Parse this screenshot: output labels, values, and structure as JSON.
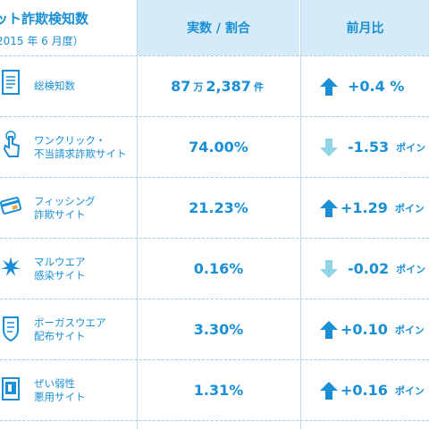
{
  "header": {
    "title": "ット詐欺検知数",
    "subtitle": "2015 年 6 月度）",
    "col_value": "実数 / 割合",
    "col_compare": "前月比"
  },
  "rows": [
    {
      "label1": "総検知数",
      "label2": "",
      "value": "87",
      "value_unit1": "万",
      "value_rest": "2,387",
      "value_unit2": "件",
      "change": "+0.4 %",
      "change_unit": "",
      "direction": "up",
      "icon": "document-icon"
    },
    {
      "label1": "ワンクリック・",
      "label2": "不当請求詐欺サイト",
      "value": "74.00%",
      "change": "-1.53",
      "change_unit": "ポイン",
      "direction": "down",
      "icon": "hand-click-icon"
    },
    {
      "label1": "フィッシング",
      "label2": "詐欺サイト",
      "value": "21.23%",
      "change": "+1.29",
      "change_unit": "ポイン",
      "direction": "up",
      "icon": "credit-card-icon"
    },
    {
      "label1": "マルウエア",
      "label2": "感染サイト",
      "value": "0.16%",
      "change": "-0.02",
      "change_unit": "ポイン",
      "direction": "down",
      "icon": "virus-icon"
    },
    {
      "label1": "ボーガスウエア",
      "label2": "配布サイト",
      "value": "3.30%",
      "change": "+0.10",
      "change_unit": "ポイン",
      "direction": "up",
      "icon": "fake-shield-icon"
    },
    {
      "label1": "ぜい弱性",
      "label2": "悪用サイト",
      "value": "1.31%",
      "change": "+0.16",
      "change_unit": "ポイン",
      "direction": "up",
      "icon": "vulnerable-window-icon"
    }
  ],
  "colors": {
    "up": "#1a8fd6",
    "down": "#8fd3e6",
    "text": "#1a8fd6"
  }
}
